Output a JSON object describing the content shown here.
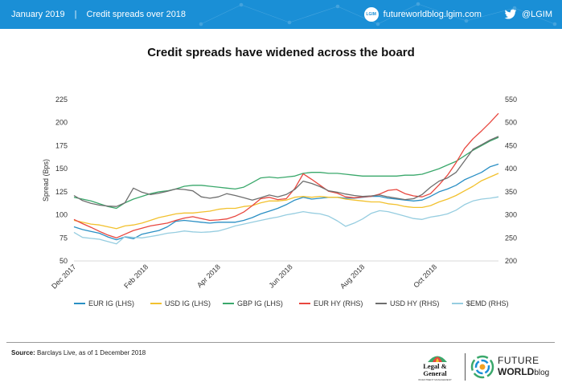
{
  "header": {
    "date": "January 2019",
    "separator": "|",
    "subject": "Credit  spreads over 2018",
    "site": "futureworldblog.lgim.com",
    "site_badge": "LGIM",
    "twitter_handle": "@LGIM",
    "site_icon": "globe-icon",
    "social_icon": "twitter-icon"
  },
  "chart_data": {
    "type": "line",
    "title": "Credit spreads have widened across the board",
    "ylabel": "Spread (Bps)",
    "y2label": "",
    "ylim": [
      50,
      225
    ],
    "y2lim": [
      200,
      550
    ],
    "yticks": [
      "225",
      "200",
      "175",
      "150",
      "125",
      "100",
      "75",
      "50"
    ],
    "y2ticks": [
      "550",
      "500",
      "450",
      "400",
      "350",
      "300",
      "250",
      "200"
    ],
    "xlim": [
      0,
      50
    ],
    "xticks": [
      {
        "x": 0,
        "label": "Dec 2017"
      },
      {
        "x": 8.5,
        "label": "Feb 2018"
      },
      {
        "x": 17,
        "label": "Apr 2018"
      },
      {
        "x": 25.5,
        "label": "Jun 2018"
      },
      {
        "x": 34,
        "label": "Aug 2018"
      },
      {
        "x": 42.5,
        "label": "Oct 2018"
      }
    ],
    "grid": false,
    "legend_position": "bottom",
    "series": [
      {
        "name": "EUR IG (LHS)",
        "axis": "left",
        "color": "#2a8fc4",
        "values": [
          87,
          84,
          82,
          80,
          76,
          73,
          76,
          74,
          79,
          81,
          83,
          87,
          93,
          94,
          93,
          92,
          91,
          92,
          92,
          92,
          94,
          97,
          101,
          104,
          107,
          111,
          116,
          119,
          117,
          118,
          119,
          119,
          118,
          118,
          119,
          120,
          120,
          118,
          117,
          116,
          115,
          116,
          120,
          125,
          128,
          132,
          138,
          142,
          146,
          152,
          155
        ]
      },
      {
        "name": "USD IG (LHS)",
        "axis": "left",
        "color": "#f2c12e",
        "values": [
          94,
          92,
          90,
          89,
          87,
          85,
          88,
          89,
          91,
          94,
          97,
          99,
          101,
          102,
          102,
          103,
          104,
          106,
          107,
          107,
          109,
          110,
          113,
          115,
          115,
          116,
          119,
          120,
          119,
          120,
          119,
          119,
          117,
          116,
          115,
          114,
          114,
          112,
          111,
          109,
          108,
          108,
          110,
          114,
          117,
          121,
          126,
          131,
          137,
          141,
          145
        ]
      },
      {
        "name": "GBP IG (LHS)",
        "axis": "left",
        "color": "#3aa86b",
        "values": [
          119,
          117,
          115,
          112,
          109,
          107,
          113,
          117,
          120,
          123,
          125,
          126,
          128,
          131,
          132,
          132,
          131,
          130,
          129,
          128,
          130,
          135,
          140,
          141,
          140,
          141,
          142,
          145,
          146,
          146,
          145,
          145,
          144,
          143,
          142,
          142,
          142,
          142,
          142,
          143,
          143,
          144,
          147,
          150,
          154,
          158,
          164,
          170,
          175,
          180,
          184
        ]
      },
      {
        "name": "EUR HY (RHS)",
        "axis": "right",
        "color": "#e8473f",
        "values": [
          290,
          281,
          273,
          264,
          256,
          250,
          258,
          266,
          271,
          276,
          279,
          282,
          288,
          293,
          296,
          292,
          288,
          289,
          291,
          297,
          306,
          320,
          335,
          338,
          333,
          335,
          357,
          389,
          377,
          364,
          351,
          347,
          339,
          337,
          339,
          340,
          345,
          353,
          355,
          346,
          341,
          339,
          346,
          365,
          386,
          413,
          444,
          465,
          482,
          500,
          520
        ]
      },
      {
        "name": "USD HY (RHS)",
        "axis": "right",
        "color": "#6e6e6e",
        "values": [
          342,
          331,
          325,
          321,
          319,
          318,
          326,
          358,
          349,
          344,
          347,
          351,
          356,
          355,
          352,
          339,
          336,
          339,
          346,
          342,
          337,
          332,
          337,
          343,
          339,
          344,
          355,
          373,
          368,
          361,
          352,
          349,
          345,
          342,
          340,
          341,
          343,
          339,
          336,
          333,
          335,
          344,
          360,
          373,
          380,
          392,
          417,
          442,
          452,
          462,
          470
        ]
      },
      {
        "name": "$EMD (RHS)",
        "axis": "right",
        "color": "#96cde0",
        "values": [
          262,
          251,
          249,
          247,
          242,
          237,
          253,
          251,
          250,
          253,
          256,
          260,
          262,
          265,
          263,
          262,
          263,
          265,
          270,
          276,
          280,
          284,
          288,
          292,
          295,
          300,
          303,
          307,
          304,
          302,
          297,
          287,
          275,
          282,
          291,
          303,
          309,
          307,
          302,
          297,
          292,
          290,
          295,
          298,
          302,
          310,
          322,
          330,
          334,
          336,
          339
        ]
      }
    ]
  },
  "footer": {
    "source_label": "Source:",
    "source_text": "Barclays Live, as of 1 December 2018",
    "lg_name_line1": "Legal &",
    "lg_name_line2": "General",
    "lg_tagline": "INVESTMENT MANAGEMENT",
    "fw_line1": "FUTURE",
    "fw_line2": "WORLD",
    "fw_line2_suffix": "blog",
    "colors": {
      "brand_blue": "#1a8fd6",
      "lg_green": "#3aa86b",
      "fw_orange": "#f2a122"
    }
  }
}
